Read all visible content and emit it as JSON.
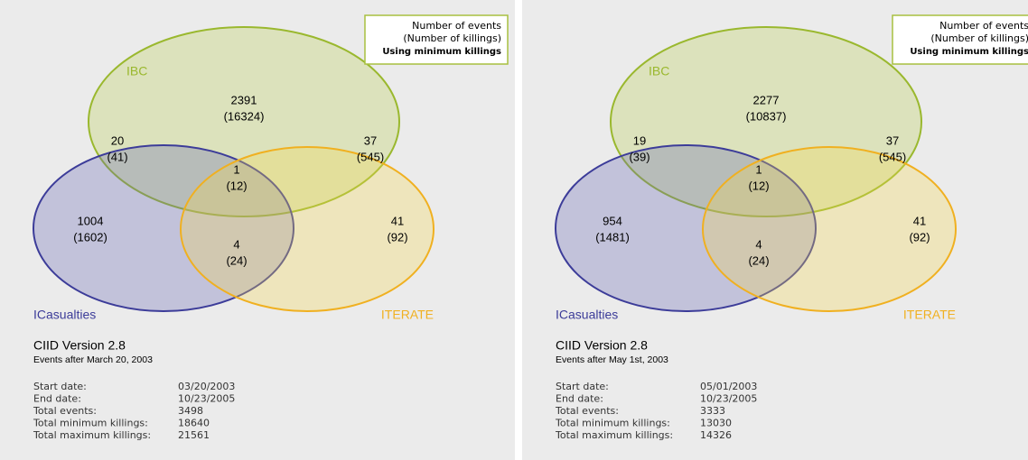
{
  "panels": [
    {
      "legend": [
        "Number of events",
        "(Number of killings)",
        "Using minimum killings"
      ],
      "sets": [
        "IBC",
        "ICasualties",
        "ITERATE"
      ],
      "regions": [
        {
          "events": 2391,
          "killings": "(16324)"
        },
        {
          "events": 20,
          "killings": "(41)"
        },
        {
          "events": 37,
          "killings": "(545)"
        },
        {
          "events": 1,
          "killings": "(12)"
        },
        {
          "events": 1004,
          "killings": "(1602)"
        },
        {
          "events": 4,
          "killings": "(24)"
        },
        {
          "events": 41,
          "killings": "(92)"
        }
      ],
      "title": "CIID Version 2.8",
      "subtitle": "Events after March 20, 2003",
      "stats": [
        {
          "label": "Start date:",
          "value": "03/20/2003"
        },
        {
          "label": "End date:",
          "value": "10/23/2005"
        },
        {
          "label": "Total events:",
          "value": 3498
        },
        {
          "label": "Total minimum killings:",
          "value": 18640
        },
        {
          "label": "Total maximum killings:",
          "value": 21561
        }
      ]
    },
    {
      "legend": [
        "Number of events",
        "(Number of killings)",
        "Using minimum killings"
      ],
      "sets": [
        "IBC",
        "ICasualties",
        "ITERATE"
      ],
      "regions": [
        {
          "events": 2277,
          "killings": "(10837)"
        },
        {
          "events": 19,
          "killings": "(39)"
        },
        {
          "events": 37,
          "killings": "(545)"
        },
        {
          "events": 1,
          "killings": "(12)"
        },
        {
          "events": 954,
          "killings": "(1481)"
        },
        {
          "events": 4,
          "killings": "(24)"
        },
        {
          "events": 41,
          "killings": "(92)"
        }
      ],
      "title": "CIID Version 2.8",
      "subtitle": "Events after May 1st, 2003",
      "stats": [
        {
          "label": "Start date:",
          "value": "05/01/2003"
        },
        {
          "label": "End date:",
          "value": "10/23/2005"
        },
        {
          "label": "Total events:",
          "value": 3333
        },
        {
          "label": "Total minimum killings:",
          "value": 13030
        },
        {
          "label": "Total maximum killings:",
          "value": 14326
        }
      ]
    }
  ]
}
